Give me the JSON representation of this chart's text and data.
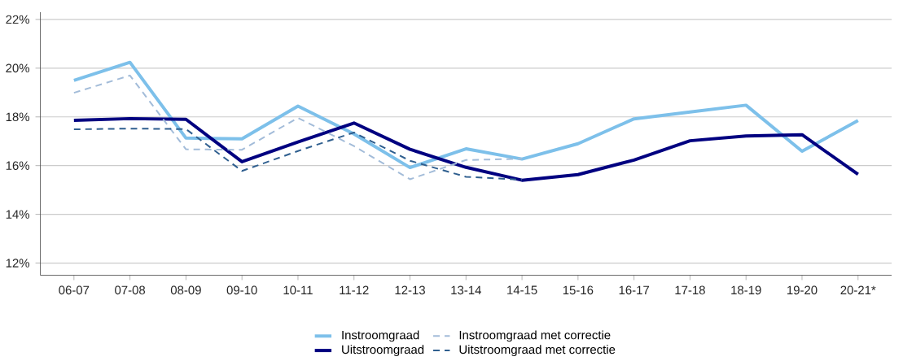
{
  "chart_data": {
    "type": "line",
    "categories": [
      "06-07",
      "07-08",
      "08-09",
      "09-10",
      "10-11",
      "11-12",
      "12-13",
      "13-14",
      "14-15",
      "15-16",
      "16-17",
      "17-18",
      "18-19",
      "19-20",
      "20-21*"
    ],
    "series": [
      {
        "name": "Instroomgraad",
        "color": "#7dc0ea",
        "line_style": "solid",
        "values": [
          19.5,
          20.24,
          17.13,
          17.1,
          18.44,
          17.3,
          15.92,
          16.69,
          16.27,
          16.9,
          17.92,
          18.2,
          18.48,
          16.59,
          17.85
        ]
      },
      {
        "name": "Uitstroomgraad",
        "color": "#000080",
        "line_style": "solid",
        "values": [
          17.86,
          17.93,
          17.9,
          16.16,
          16.97,
          17.75,
          16.67,
          15.93,
          15.4,
          15.63,
          16.23,
          17.02,
          17.22,
          17.27,
          15.64
        ]
      },
      {
        "name": "Instroomgraad met correctie",
        "color": "#a3bcd9",
        "line_style": "dashed",
        "values": [
          18.99,
          19.7,
          16.67,
          16.65,
          17.96,
          16.8,
          15.44,
          16.23,
          16.28,
          null,
          null,
          null,
          null,
          null,
          null
        ]
      },
      {
        "name": "Uitstroomgraad met correctie",
        "color": "#2f5f8f",
        "line_style": "dashed",
        "values": [
          17.49,
          17.52,
          17.5,
          15.78,
          16.6,
          17.36,
          16.2,
          15.54,
          15.42,
          null,
          null,
          null,
          null,
          null,
          null
        ]
      }
    ],
    "ylim": [
      11.5,
      22.3
    ],
    "yticks": [
      {
        "value": 12,
        "label": "12%"
      },
      {
        "value": 14,
        "label": "14%"
      },
      {
        "value": 16,
        "label": "16%"
      },
      {
        "value": 18,
        "label": "18%"
      },
      {
        "value": 20,
        "label": "20%"
      },
      {
        "value": 22,
        "label": "22%"
      }
    ],
    "grid": "y",
    "legend": "bottom",
    "marker": "none"
  }
}
